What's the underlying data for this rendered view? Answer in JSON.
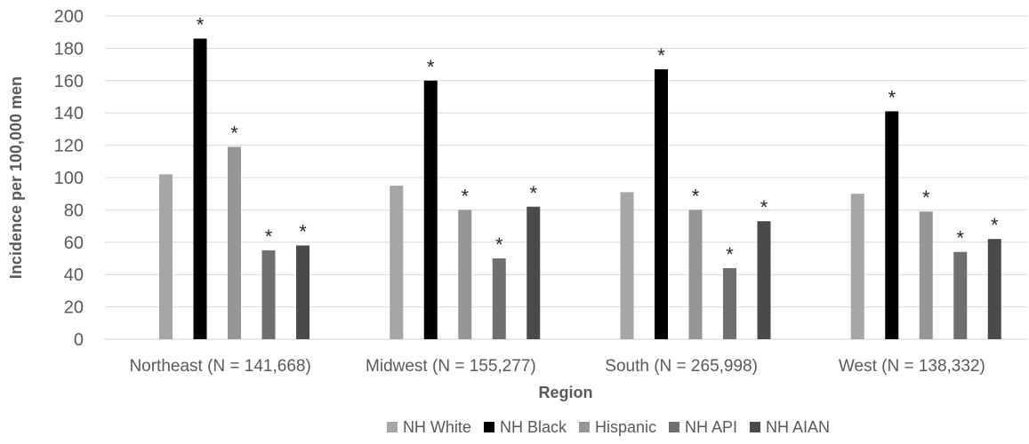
{
  "chart_data": {
    "type": "bar",
    "title": "",
    "xlabel": "Region",
    "ylabel": "Incidence per 100,000 men",
    "ylim": [
      0,
      200
    ],
    "yticks": [
      0,
      20,
      40,
      60,
      80,
      100,
      120,
      140,
      160,
      180,
      200
    ],
    "grid": true,
    "legend_position": "bottom",
    "categories": [
      "Northeast (N = 141,668)",
      "Midwest (N = 155,277)",
      "South (N = 265,998)",
      "West (N = 138,332)"
    ],
    "series": [
      {
        "name": "NH White",
        "color": "#a6a6a6",
        "values": [
          102,
          95,
          91,
          90
        ],
        "marks": [
          "",
          "",
          "",
          ""
        ]
      },
      {
        "name": "NH Black",
        "color": "#000000",
        "values": [
          186,
          160,
          167,
          141
        ],
        "marks": [
          "*",
          "*",
          "*",
          "*"
        ]
      },
      {
        "name": "Hispanic",
        "color": "#969696",
        "values": [
          119,
          80,
          80,
          79
        ],
        "marks": [
          "*",
          "*",
          "*",
          "*"
        ]
      },
      {
        "name": "NH API",
        "color": "#6f6f6f",
        "values": [
          55,
          50,
          44,
          54
        ],
        "marks": [
          "*",
          "*",
          "*",
          "*"
        ]
      },
      {
        "name": "NH AIAN",
        "color": "#4a4a4a",
        "values": [
          58,
          82,
          73,
          62
        ],
        "marks": [
          "*",
          "*",
          "*",
          "*"
        ]
      }
    ]
  }
}
